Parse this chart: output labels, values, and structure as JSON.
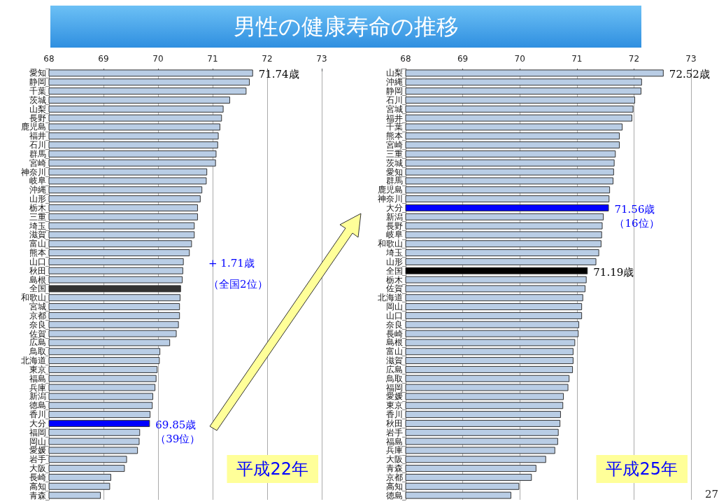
{
  "chart_data": [
    {
      "type": "bar",
      "title": "男性の健康寿命の推移",
      "subtitle": "平成22年",
      "orientation": "horizontal",
      "grid": "x",
      "xlim": [
        68,
        73
      ],
      "xticks": [
        68,
        69,
        70,
        71,
        72,
        73
      ],
      "categories": [
        "愛知",
        "静岡",
        "千葉",
        "茨城",
        "山梨",
        "長野",
        "鹿児島",
        "福井",
        "石川",
        "群馬",
        "宮崎",
        "神奈川",
        "岐阜",
        "沖縄",
        "山形",
        "栃木",
        "三重",
        "埼玉",
        "滋賀",
        "富山",
        "熊本",
        "山口",
        "秋田",
        "島根",
        "全国",
        "和歌山",
        "宮城",
        "京都",
        "奈良",
        "佐賀",
        "広島",
        "鳥取",
        "北海道",
        "東京",
        "福島",
        "兵庫",
        "新潟",
        "徳島",
        "香川",
        "大分",
        "福岡",
        "岡山",
        "愛媛",
        "岩手",
        "大阪",
        "長崎",
        "高知",
        "青森"
      ],
      "values": [
        71.74,
        71.68,
        71.62,
        71.32,
        71.2,
        71.17,
        71.14,
        71.11,
        71.1,
        71.07,
        71.06,
        70.9,
        70.89,
        70.81,
        70.78,
        70.73,
        70.73,
        70.67,
        70.67,
        70.62,
        70.58,
        70.47,
        70.46,
        70.45,
        70.42,
        70.41,
        70.4,
        70.4,
        70.38,
        70.34,
        70.22,
        70.04,
        70.03,
        69.99,
        69.97,
        69.95,
        69.91,
        69.9,
        69.86,
        69.85,
        69.67,
        69.66,
        69.63,
        69.43,
        69.39,
        69.14,
        69.12,
        68.95
      ],
      "colors": [
        "#b9cde5",
        "#b9cde5",
        "#b9cde5",
        "#b9cde5",
        "#b9cde5",
        "#b9cde5",
        "#b9cde5",
        "#b9cde5",
        "#b9cde5",
        "#b9cde5",
        "#b9cde5",
        "#b9cde5",
        "#b9cde5",
        "#b9cde5",
        "#b9cde5",
        "#b9cde5",
        "#b9cde5",
        "#b9cde5",
        "#b9cde5",
        "#b9cde5",
        "#b9cde5",
        "#b9cde5",
        "#b9cde5",
        "#b9cde5",
        "#333333",
        "#b9cde5",
        "#b9cde5",
        "#b9cde5",
        "#b9cde5",
        "#b9cde5",
        "#b9cde5",
        "#b9cde5",
        "#b9cde5",
        "#b9cde5",
        "#b9cde5",
        "#b9cde5",
        "#b9cde5",
        "#b9cde5",
        "#b9cde5",
        "#0000ff",
        "#b9cde5",
        "#b9cde5",
        "#b9cde5",
        "#b9cde5",
        "#b9cde5",
        "#b9cde5",
        "#b9cde5",
        "#b9cde5"
      ],
      "annotations": [
        {
          "text": "71.74歳",
          "x": 71.74,
          "y": "愛知"
        },
        {
          "text": "69.85歳（39位）",
          "x": 69.85,
          "y": "大分"
        },
        "+ 1.71歳",
        "（全国2位）"
      ]
    },
    {
      "type": "bar",
      "subtitle": "平成25年",
      "orientation": "horizontal",
      "grid": "x",
      "xlim": [
        68,
        73
      ],
      "xticks": [
        68,
        69,
        70,
        71,
        72,
        73
      ],
      "categories": [
        "山梨",
        "沖縄",
        "静岡",
        "石川",
        "宮城",
        "福井",
        "千葉",
        "熊本",
        "宮崎",
        "三重",
        "茨城",
        "愛知",
        "群馬",
        "鹿児島",
        "神奈川",
        "大分",
        "新潟",
        "長野",
        "岐阜",
        "和歌山",
        "埼玉",
        "山形",
        "全国",
        "栃木",
        "佐賀",
        "北海道",
        "岡山",
        "山口",
        "奈良",
        "長崎",
        "島根",
        "富山",
        "滋賀",
        "広島",
        "鳥取",
        "福岡",
        "愛媛",
        "東京",
        "香川",
        "秋田",
        "岩手",
        "福島",
        "兵庫",
        "大阪",
        "青森",
        "京都",
        "高知",
        "徳島"
      ],
      "values": [
        72.52,
        72.14,
        72.13,
        72.02,
        71.99,
        71.97,
        71.8,
        71.75,
        71.75,
        71.68,
        71.66,
        71.65,
        71.64,
        71.58,
        71.57,
        71.56,
        71.47,
        71.45,
        71.44,
        71.43,
        71.39,
        71.34,
        71.19,
        71.17,
        71.15,
        71.11,
        71.09,
        71.09,
        71.04,
        71.03,
        70.97,
        70.94,
        70.94,
        70.93,
        70.87,
        70.85,
        70.77,
        70.76,
        70.72,
        70.71,
        70.68,
        70.67,
        70.62,
        70.46,
        70.29,
        70.21,
        69.99,
        69.85
      ],
      "colors": [
        "#b9cde5",
        "#b9cde5",
        "#b9cde5",
        "#b9cde5",
        "#b9cde5",
        "#b9cde5",
        "#b9cde5",
        "#b9cde5",
        "#b9cde5",
        "#b9cde5",
        "#b9cde5",
        "#b9cde5",
        "#b9cde5",
        "#b9cde5",
        "#b9cde5",
        "#0000ff",
        "#b9cde5",
        "#b9cde5",
        "#b9cde5",
        "#b9cde5",
        "#b9cde5",
        "#b9cde5",
        "#000000",
        "#b9cde5",
        "#b9cde5",
        "#b9cde5",
        "#b9cde5",
        "#b9cde5",
        "#b9cde5",
        "#b9cde5",
        "#b9cde5",
        "#b9cde5",
        "#b9cde5",
        "#b9cde5",
        "#b9cde5",
        "#b9cde5",
        "#b9cde5",
        "#b9cde5",
        "#b9cde5",
        "#b9cde5",
        "#b9cde5",
        "#b9cde5",
        "#b9cde5",
        "#b9cde5",
        "#b9cde5",
        "#b9cde5",
        "#b9cde5",
        "#b9cde5"
      ],
      "annotations": [
        {
          "text": "72.52歳",
          "x": 72.52,
          "y": "山梨"
        },
        {
          "text": "71.56歳（16位）",
          "x": 71.56,
          "y": "大分"
        },
        {
          "text": "71.19歳",
          "x": 71.19,
          "y": "全国"
        },
        "27"
      ]
    }
  ]
}
